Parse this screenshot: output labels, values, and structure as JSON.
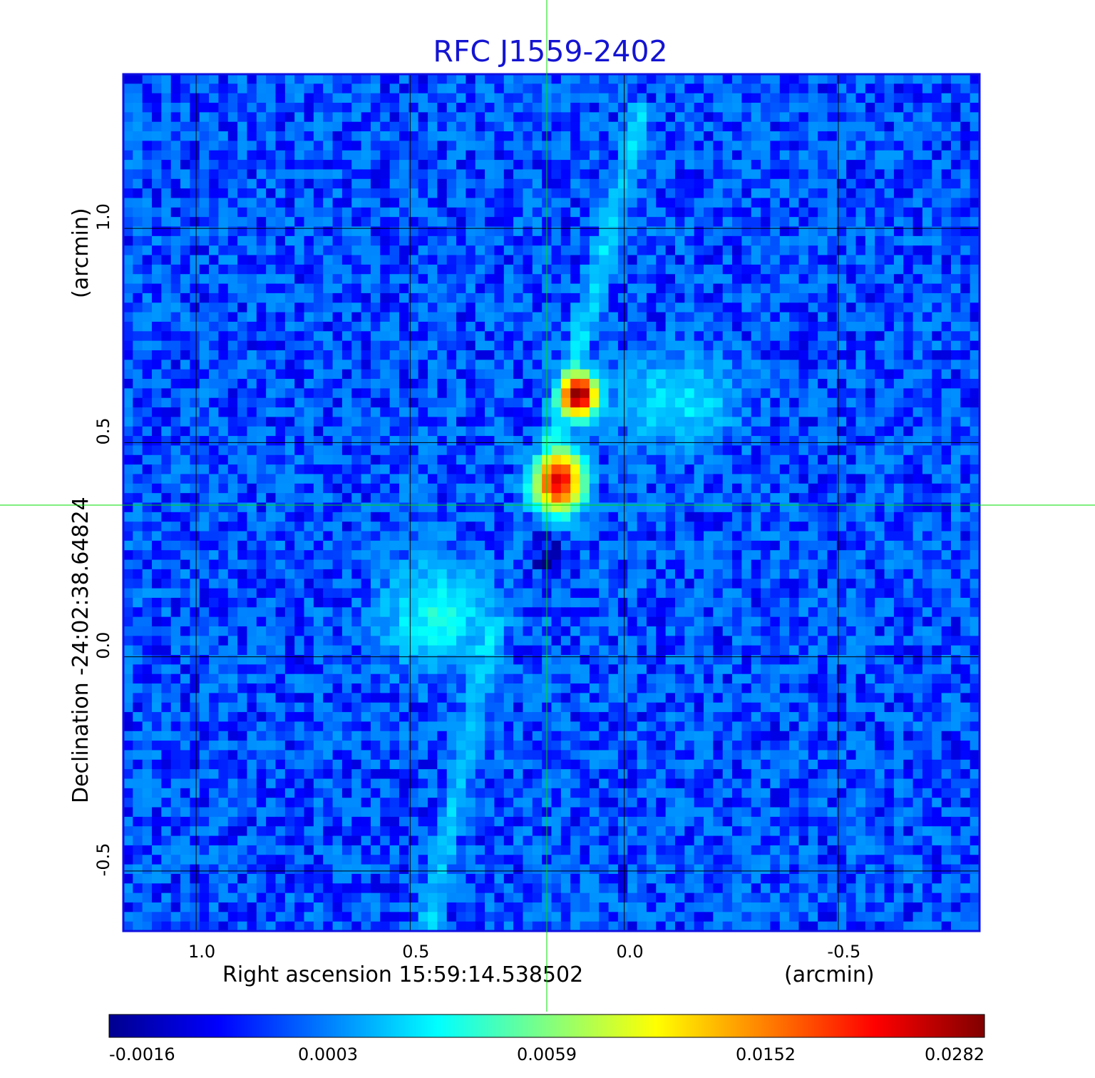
{
  "chart_data": {
    "type": "heatmap",
    "title": "RFC J1559-2402",
    "colormap": "jet",
    "x_axis": {
      "label": "Right ascension  15:59:14.538502",
      "unit_label": "(arcmin)",
      "range": [
        1.17,
        -0.83
      ],
      "reversed": true,
      "ticks": [
        1.0,
        0.5,
        0.0,
        -0.5
      ],
      "tick_labels": [
        "1.0",
        "0.5",
        "0.0",
        "-0.5"
      ],
      "grid": true
    },
    "y_axis": {
      "label": "Declination  -24:02:38.64824",
      "unit_label": "(arcmin)",
      "range": [
        -0.64,
        1.36
      ],
      "ticks": [
        -0.5,
        0.0,
        0.5,
        1.0
      ],
      "tick_labels": [
        "-0.5",
        "0.0",
        "0.5",
        "1.0"
      ],
      "grid": true
    },
    "crosshair": {
      "x": 0.18,
      "y": 0.355,
      "color": "#00dd00"
    },
    "colorbar": {
      "tick_labels": [
        "-0.0016",
        "0.0003",
        "0.0059",
        "0.0152",
        "0.0282"
      ],
      "min": -0.0016,
      "max": 0.0282
    },
    "background_level": 0.0,
    "components": [
      {
        "type": "peak",
        "x": 0.105,
        "y": 0.61,
        "sx": 0.025,
        "sy": 0.03,
        "value": 0.028
      },
      {
        "type": "peak",
        "x": 0.155,
        "y": 0.41,
        "sx": 0.035,
        "sy": 0.045,
        "value": 0.023
      },
      {
        "type": "diffuse",
        "x": -0.12,
        "y": 0.6,
        "sx": 0.09,
        "sy": 0.07,
        "value": 0.0026
      },
      {
        "type": "diffuse",
        "x": 0.44,
        "y": 0.1,
        "sx": 0.08,
        "sy": 0.08,
        "value": 0.0034
      },
      {
        "type": "negative",
        "x": 0.2,
        "y": 0.45,
        "sx": 0.02,
        "sy": 0.05,
        "value": -0.0014
      },
      {
        "type": "negative",
        "x": 0.18,
        "y": 0.25,
        "sx": 0.02,
        "sy": 0.06,
        "value": -0.0012
      }
    ],
    "ridges": [
      {
        "from": [
          0.17,
          0.5
        ],
        "to": [
          -0.05,
          1.3
        ],
        "value": 0.0022
      },
      {
        "from": [
          0.3,
          0.1
        ],
        "to": [
          0.46,
          -0.64
        ],
        "value": 0.0018
      }
    ]
  }
}
